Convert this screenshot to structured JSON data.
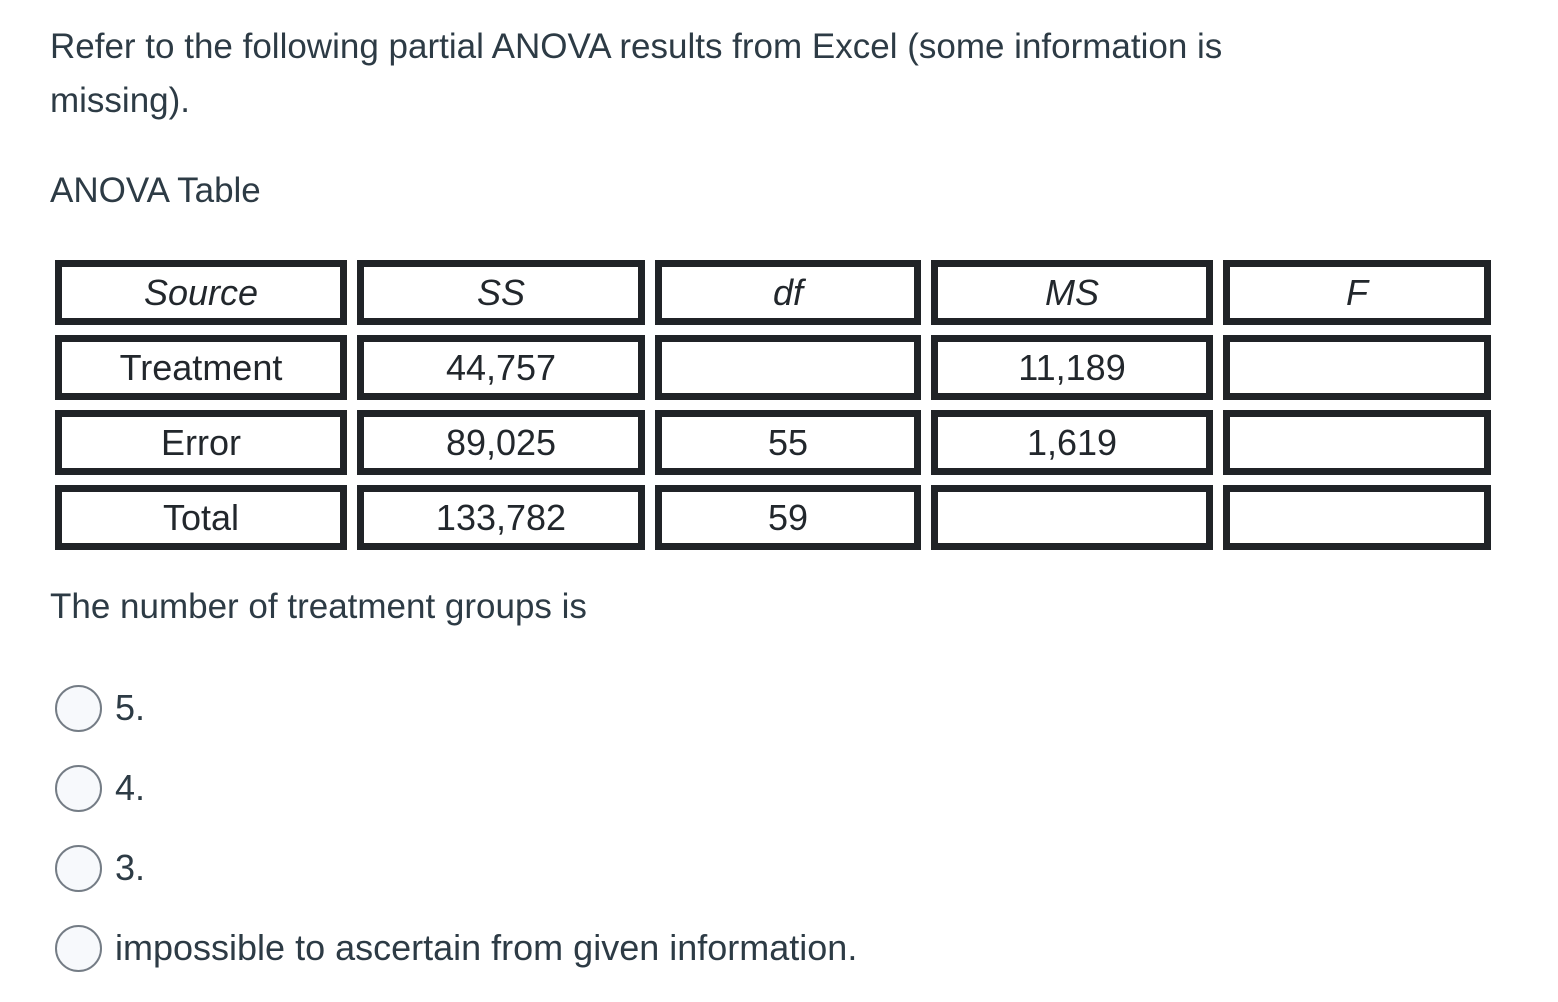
{
  "question": {
    "intro": "Refer to the following partial ANOVA results from Excel (some information is\nmissing).",
    "table_title": "ANOVA Table",
    "prompt": "The number of treatment groups is"
  },
  "anova_table": {
    "headers": [
      "Source",
      "SS",
      "df",
      "MS",
      "F"
    ],
    "rows": [
      {
        "source": "Treatment",
        "ss": "44,757",
        "df": "",
        "ms": "11,189",
        "f": ""
      },
      {
        "source": "Error",
        "ss": "89,025",
        "df": "55",
        "ms": "1,619",
        "f": ""
      },
      {
        "source": "Total",
        "ss": "133,782",
        "df": "59",
        "ms": "",
        "f": ""
      }
    ]
  },
  "options": [
    {
      "label": "5."
    },
    {
      "label": "4."
    },
    {
      "label": "3."
    },
    {
      "label": "impossible to ascertain from given information."
    }
  ],
  "colors": {
    "text": "#2d3b45",
    "table_text": "#22272c",
    "table_border": "#202327",
    "radio_border": "#747c85",
    "radio_fill": "#f7f9fc",
    "background": "#ffffff"
  }
}
